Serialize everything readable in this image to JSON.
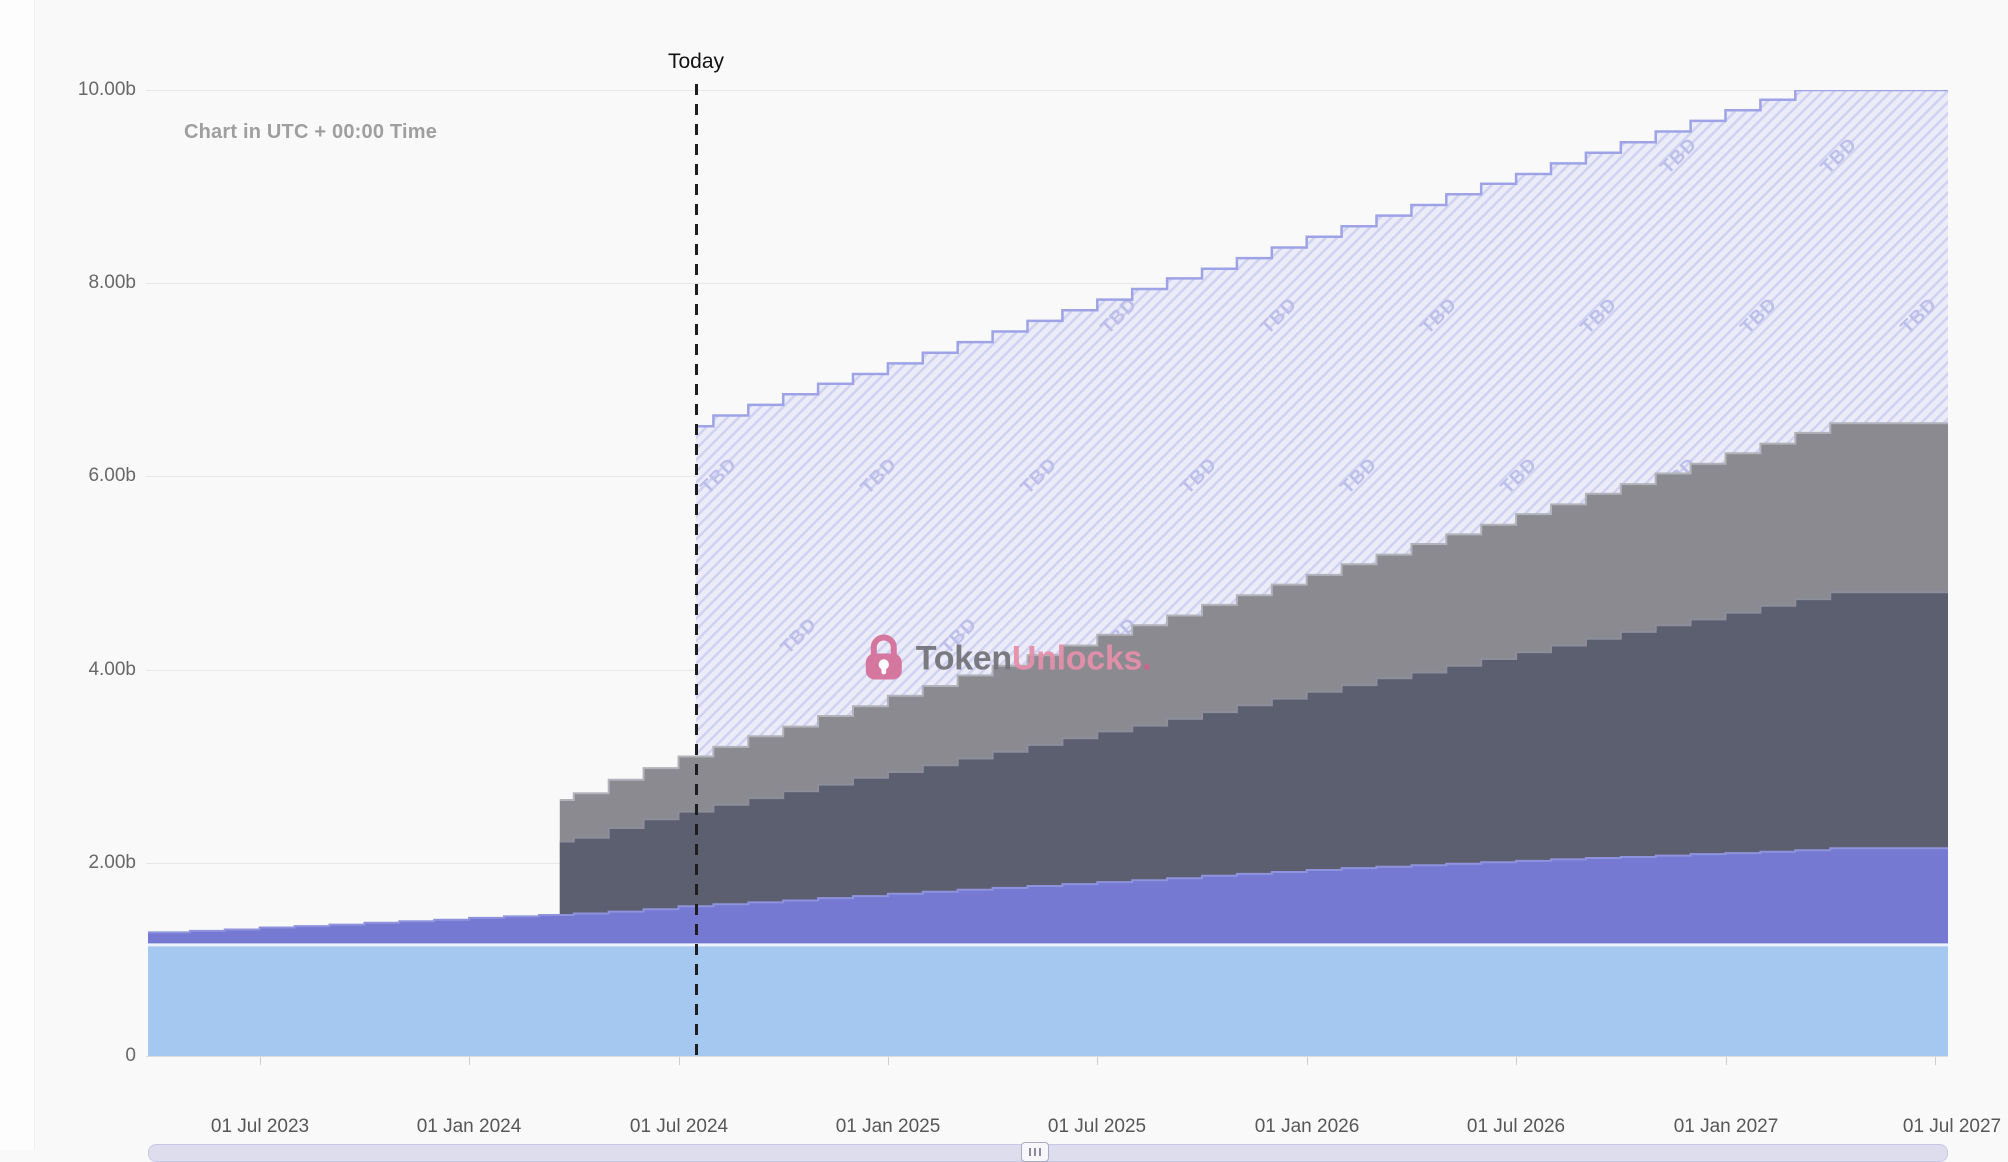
{
  "meta": {
    "utc_note": "Chart in UTC + 00:00 Time",
    "today_label": "Today"
  },
  "watermark": {
    "brand_bold": "Token",
    "brand_light": "Unlocks",
    "dot": ".",
    "icon": "lock-icon",
    "brand_color": "#74747a",
    "accent_color": "#e490aa"
  },
  "axes": {
    "y": {
      "unit": "b",
      "ticks": [
        {
          "label": "10.00b",
          "v": 10
        },
        {
          "label": "8.00b",
          "v": 8
        },
        {
          "label": "6.00b",
          "v": 6
        },
        {
          "label": "4.00b",
          "v": 4
        },
        {
          "label": "2.00b",
          "v": 2
        },
        {
          "label": "0",
          "v": 0
        }
      ]
    },
    "x": {
      "ticks": [
        {
          "label": "01 Jul 2023",
          "i": 3
        },
        {
          "label": "01 Jan 2024",
          "i": 9
        },
        {
          "label": "01 Jul 2024",
          "i": 15
        },
        {
          "label": "01 Jan 2025",
          "i": 21
        },
        {
          "label": "01 Jul 2025",
          "i": 27
        },
        {
          "label": "01 Jan 2026",
          "i": 33
        },
        {
          "label": "01 Jul 2026",
          "i": 39
        },
        {
          "label": "01 Jan 2027",
          "i": 45
        },
        {
          "label": "01 Jul 2027",
          "i": 51
        }
      ]
    }
  },
  "chart_data": {
    "type": "area",
    "subtype": "stepped-stacked-cumulative",
    "x_unit": "months, index 0 = Apr 2023",
    "x_range": [
      -0.2,
      51.7
    ],
    "ylim": [
      0,
      10
    ],
    "y_unit": "billions of tokens",
    "today_index": 15.5,
    "grid": "horizontal",
    "legend": "none",
    "values_meaning": "each series point is [month_index, cumulative stack-top in billions], step-after",
    "series": [
      {
        "name": "unlocked-base",
        "color": "#a5c8f1",
        "top_line": "#edf3fc",
        "top_width": 3,
        "points": [
          [
            -0.2,
            1.15
          ]
        ]
      },
      {
        "name": "layer-purple",
        "color": "#7579d2",
        "top_line": "#8f93de",
        "top_width": 2,
        "points": [
          [
            -0.2,
            1.28
          ],
          [
            1,
            1.295
          ],
          [
            2,
            1.31
          ],
          [
            3,
            1.33
          ],
          [
            4,
            1.345
          ],
          [
            5,
            1.36
          ],
          [
            6,
            1.38
          ],
          [
            7,
            1.395
          ],
          [
            8,
            1.41
          ],
          [
            9,
            1.43
          ],
          [
            10,
            1.445
          ],
          [
            11,
            1.46
          ],
          [
            12,
            1.475
          ],
          [
            13,
            1.495
          ],
          [
            14,
            1.52
          ],
          [
            15,
            1.55
          ],
          [
            16,
            1.57
          ],
          [
            17,
            1.59
          ],
          [
            18,
            1.61
          ],
          [
            19,
            1.635
          ],
          [
            20,
            1.655
          ],
          [
            21,
            1.68
          ],
          [
            22,
            1.7
          ],
          [
            23,
            1.72
          ],
          [
            24,
            1.74
          ],
          [
            25,
            1.76
          ],
          [
            26,
            1.78
          ],
          [
            27,
            1.8
          ],
          [
            28,
            1.82
          ],
          [
            29,
            1.84
          ],
          [
            30,
            1.865
          ],
          [
            31,
            1.885
          ],
          [
            32,
            1.905
          ],
          [
            33,
            1.925
          ],
          [
            34,
            1.945
          ],
          [
            35,
            1.96
          ],
          [
            36,
            1.975
          ],
          [
            37,
            1.99
          ],
          [
            38,
            2.005
          ],
          [
            39,
            2.02
          ],
          [
            40,
            2.035
          ],
          [
            41,
            2.05
          ],
          [
            42,
            2.06
          ],
          [
            43,
            2.075
          ],
          [
            44,
            2.09
          ],
          [
            45,
            2.1
          ],
          [
            46,
            2.115
          ],
          [
            47,
            2.13
          ],
          [
            48,
            2.15
          ]
        ]
      },
      {
        "name": "layer-dark-slate",
        "color": "#5c5f6f",
        "top_line": "#8c8e9c",
        "top_width": 2,
        "points": [
          [
            11.6,
            2.22
          ],
          [
            12,
            2.26
          ],
          [
            13,
            2.36
          ],
          [
            14,
            2.45
          ],
          [
            15,
            2.53
          ],
          [
            16,
            2.6
          ],
          [
            17,
            2.67
          ],
          [
            18,
            2.74
          ],
          [
            19,
            2.81
          ],
          [
            20,
            2.88
          ],
          [
            21,
            2.94
          ],
          [
            22,
            3.01
          ],
          [
            23,
            3.08
          ],
          [
            24,
            3.15
          ],
          [
            25,
            3.22
          ],
          [
            26,
            3.29
          ],
          [
            27,
            3.36
          ],
          [
            28,
            3.42
          ],
          [
            29,
            3.49
          ],
          [
            30,
            3.56
          ],
          [
            31,
            3.63
          ],
          [
            32,
            3.7
          ],
          [
            33,
            3.77
          ],
          [
            34,
            3.84
          ],
          [
            35,
            3.91
          ],
          [
            36,
            3.97
          ],
          [
            37,
            4.04
          ],
          [
            38,
            4.11
          ],
          [
            39,
            4.18
          ],
          [
            40,
            4.25
          ],
          [
            41,
            4.32
          ],
          [
            42,
            4.39
          ],
          [
            43,
            4.46
          ],
          [
            44,
            4.52
          ],
          [
            45,
            4.59
          ],
          [
            46,
            4.66
          ],
          [
            47,
            4.73
          ],
          [
            48,
            4.8
          ]
        ]
      },
      {
        "name": "layer-gray",
        "color": "#8a8a90",
        "top_line": "#b2b2ba",
        "top_width": 2,
        "points": [
          [
            11.6,
            2.65
          ],
          [
            12,
            2.72
          ],
          [
            13,
            2.86
          ],
          [
            14,
            2.98
          ],
          [
            15,
            3.1
          ],
          [
            16,
            3.2
          ],
          [
            17,
            3.31
          ],
          [
            18,
            3.41
          ],
          [
            19,
            3.52
          ],
          [
            20,
            3.62
          ],
          [
            21,
            3.73
          ],
          [
            22,
            3.83
          ],
          [
            23,
            3.94
          ],
          [
            24,
            4.04
          ],
          [
            25,
            4.15
          ],
          [
            26,
            4.25
          ],
          [
            27,
            4.36
          ],
          [
            28,
            4.46
          ],
          [
            29,
            4.56
          ],
          [
            30,
            4.67
          ],
          [
            31,
            4.77
          ],
          [
            32,
            4.88
          ],
          [
            33,
            4.98
          ],
          [
            34,
            5.09
          ],
          [
            35,
            5.19
          ],
          [
            36,
            5.3
          ],
          [
            37,
            5.4
          ],
          [
            38,
            5.5
          ],
          [
            39,
            5.61
          ],
          [
            40,
            5.71
          ],
          [
            41,
            5.82
          ],
          [
            42,
            5.92
          ],
          [
            43,
            6.03
          ],
          [
            44,
            6.13
          ],
          [
            45,
            6.24
          ],
          [
            46,
            6.34
          ],
          [
            47,
            6.45
          ],
          [
            48,
            6.55
          ]
        ]
      },
      {
        "name": "future-tbd",
        "style": "hatched",
        "fill": "#ececf8",
        "hatch_color": "#cfd2f1",
        "line": "#9da3e6",
        "line_width": 2.5,
        "label": "TBD",
        "label_color": "#bbbfe9",
        "points": [
          [
            15.5,
            6.52
          ],
          [
            16,
            6.63
          ],
          [
            17,
            6.74
          ],
          [
            18,
            6.85
          ],
          [
            19,
            6.96
          ],
          [
            20,
            7.06
          ],
          [
            21,
            7.17
          ],
          [
            22,
            7.28
          ],
          [
            23,
            7.39
          ],
          [
            24,
            7.5
          ],
          [
            25,
            7.61
          ],
          [
            26,
            7.72
          ],
          [
            27,
            7.83
          ],
          [
            28,
            7.94
          ],
          [
            29,
            8.05
          ],
          [
            30,
            8.15
          ],
          [
            31,
            8.26
          ],
          [
            32,
            8.37
          ],
          [
            33,
            8.48
          ],
          [
            34,
            8.59
          ],
          [
            35,
            8.7
          ],
          [
            36,
            8.81
          ],
          [
            37,
            8.92
          ],
          [
            38,
            9.03
          ],
          [
            39,
            9.13
          ],
          [
            40,
            9.24
          ],
          [
            41,
            9.35
          ],
          [
            42,
            9.46
          ],
          [
            43,
            9.57
          ],
          [
            44,
            9.68
          ],
          [
            45,
            9.79
          ],
          [
            46,
            9.9
          ],
          [
            47,
            10
          ]
        ]
      }
    ]
  },
  "theme": {
    "page_bg": "#f9f9f9",
    "grid_color": "#e8e8e8",
    "axis_label_color": "#575757",
    "today_line_color": "#1e1e21"
  }
}
